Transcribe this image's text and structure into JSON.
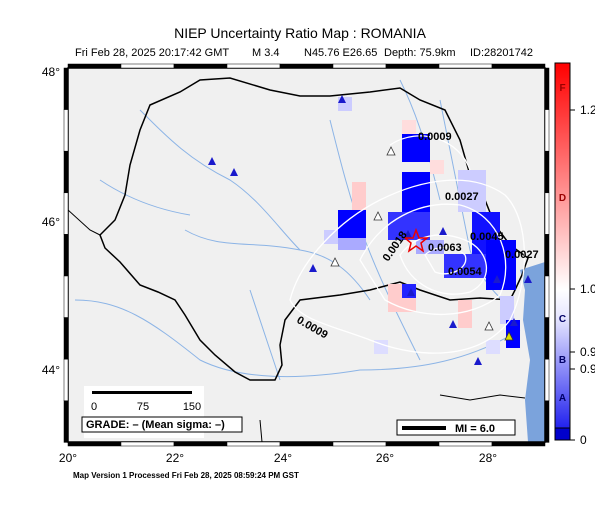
{
  "header": {
    "title": "NIEP Uncertainty Ratio Map : ROMANIA",
    "date": "Fri Feb 28, 2025 20:17:42 GMT",
    "magnitude": "M 3.4",
    "location": "N45.76 E26.65",
    "depth": "Depth: 75.9km",
    "id": "ID:28201742"
  },
  "map": {
    "lat_labels": [
      "48°",
      "46°",
      "44°"
    ],
    "lon_labels": [
      "20°",
      "22°",
      "24°",
      "26°",
      "28°"
    ],
    "contour_labels": [
      "0.0009",
      "0.0027",
      "0.0018",
      "0.0063",
      "0.0045",
      "0.0027",
      "0.0054",
      "0.0009"
    ],
    "scale_labels": [
      "0",
      "75",
      "150"
    ],
    "grade": "GRADE: – (Mean sigma: –)",
    "mi": "MI = 6.0"
  },
  "colorbar": {
    "grades": [
      "F",
      "D",
      "C",
      "B",
      "A"
    ],
    "ticks": [
      "1.2",
      "1.0",
      "0.9",
      "0.9",
      "0"
    ]
  },
  "footer": "Map Version 1 Processed Fri Feb 28, 2025 08:59:24 PM GST"
}
